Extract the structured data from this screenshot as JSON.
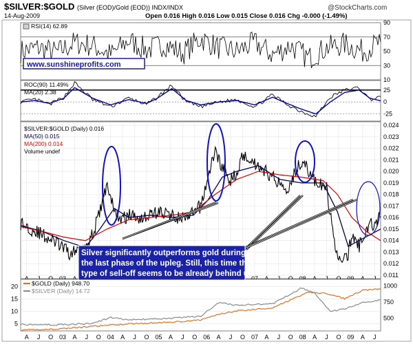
{
  "header": {
    "title": "$SILVER:$GOLD",
    "subtitle": "(Silver (EOD)/Gold (EOD))  INDX/INDX",
    "date": "14-Aug-2009",
    "ohlc": "Open 0.016  High 0.016  Low 0.015  Close 0.016  Chg -0.000 (-1.49%)",
    "brand": "@StockCharts.com"
  },
  "url_label": "www.sunshineprofits.com",
  "annotation": {
    "lines": [
      "Silver significantly outperforms gold during",
      "the last phase of the upleg. Still, this time this",
      "type of sell-off seems to be already behind us."
    ]
  },
  "chart_data": [
    {
      "type": "line",
      "legend": [
        "RSI(14) 62.89"
      ],
      "y_ticks": [
        "90",
        "70",
        "50",
        "30",
        "10"
      ],
      "ylim": [
        10,
        90
      ],
      "reference_lines": [
        70,
        30
      ],
      "series": [
        {
          "name": "RSI(14)",
          "x_frac": [
            0,
            0.05,
            0.1,
            0.15,
            0.2,
            0.25,
            0.3,
            0.35,
            0.4,
            0.45,
            0.5,
            0.55,
            0.6,
            0.65,
            0.7,
            0.75,
            0.8,
            0.85,
            0.9,
            0.95,
            1
          ],
          "values": [
            50,
            55,
            48,
            62,
            58,
            45,
            65,
            52,
            60,
            47,
            68,
            55,
            50,
            62,
            45,
            58,
            40,
            55,
            60,
            50,
            62.89
          ]
        }
      ]
    },
    {
      "type": "line",
      "legend": [
        "ROC(90) 11.49%",
        "MA(20) 2.38"
      ],
      "y_ticks": [
        "25",
        "0",
        "-25"
      ],
      "ylim": [
        -40,
        45
      ],
      "reference_lines": [
        25,
        0,
        -25
      ],
      "series": [
        {
          "name": "ROC(90)",
          "x_frac": [
            0,
            0.04,
            0.08,
            0.12,
            0.15,
            0.2,
            0.25,
            0.3,
            0.35,
            0.38,
            0.42,
            0.46,
            0.5,
            0.55,
            0.6,
            0.65,
            0.7,
            0.74,
            0.78,
            0.82,
            0.86,
            0.9,
            0.94,
            0.97,
            1
          ],
          "values": [
            0,
            5,
            -5,
            10,
            40,
            5,
            -10,
            8,
            -5,
            10,
            35,
            0,
            -10,
            0,
            5,
            -10,
            15,
            -5,
            -20,
            -30,
            10,
            25,
            30,
            5,
            11.49
          ]
        },
        {
          "name": "MA(20)",
          "x_frac": [
            0,
            0.04,
            0.08,
            0.12,
            0.15,
            0.2,
            0.25,
            0.3,
            0.35,
            0.38,
            0.42,
            0.46,
            0.5,
            0.55,
            0.6,
            0.65,
            0.7,
            0.74,
            0.78,
            0.82,
            0.86,
            0.9,
            0.94,
            0.97,
            1
          ],
          "values": [
            0,
            3,
            -3,
            8,
            30,
            8,
            -6,
            5,
            -3,
            8,
            28,
            3,
            -6,
            0,
            3,
            -6,
            10,
            -3,
            -15,
            -25,
            0,
            20,
            25,
            8,
            2.38
          ]
        }
      ]
    },
    {
      "type": "line",
      "title": "$SILVER:$GOLD (Daily) 0.016",
      "legend": [
        "MA(50) 0.015",
        "MA(200) 0.014",
        "Volume undef"
      ],
      "y_ticks": [
        "0.024",
        "0.023",
        "0.022",
        "0.021",
        "0.020",
        "0.019",
        "0.018",
        "0.017",
        "0.016",
        "0.015",
        "0.014",
        "0.013",
        "0.012",
        "0.011"
      ],
      "ylim": [
        0.0107,
        0.0243
      ],
      "x_labels": [
        "A",
        "J",
        "O",
        "03",
        "A",
        "J",
        "O",
        "04",
        "A",
        "J",
        "O",
        "05",
        "A",
        "J",
        "O",
        "06",
        "A",
        "J",
        "O",
        "07",
        "A",
        "J",
        "O",
        "08",
        "A",
        "J",
        "O",
        "09",
        "A",
        "J"
      ],
      "series": [
        {
          "name": "$SILVER:$GOLD",
          "x_frac": [
            0,
            0.03,
            0.06,
            0.1,
            0.14,
            0.18,
            0.2,
            0.22,
            0.24,
            0.26,
            0.28,
            0.3,
            0.34,
            0.38,
            0.42,
            0.46,
            0.5,
            0.54,
            0.58,
            0.6,
            0.62,
            0.64,
            0.66,
            0.7,
            0.74,
            0.78,
            0.82,
            0.85,
            0.87,
            0.89,
            0.91,
            0.92,
            0.94,
            0.96,
            0.98,
            1
          ],
          "values": [
            0.0155,
            0.015,
            0.0145,
            0.0138,
            0.0128,
            0.0137,
            0.0145,
            0.0165,
            0.019,
            0.0165,
            0.0158,
            0.0162,
            0.016,
            0.0165,
            0.0162,
            0.0158,
            0.017,
            0.0218,
            0.019,
            0.02,
            0.0215,
            0.021,
            0.0205,
            0.0195,
            0.0185,
            0.021,
            0.019,
            0.0185,
            0.014,
            0.012,
            0.0128,
            0.0145,
            0.0135,
            0.015,
            0.0155,
            0.016
          ]
        },
        {
          "name": "MA(50)",
          "x_frac": [
            0,
            0.06,
            0.12,
            0.18,
            0.22,
            0.26,
            0.3,
            0.36,
            0.42,
            0.48,
            0.52,
            0.56,
            0.6,
            0.66,
            0.72,
            0.78,
            0.84,
            0.88,
            0.91,
            0.94,
            0.97,
            1
          ],
          "values": [
            0.0153,
            0.0148,
            0.014,
            0.0134,
            0.015,
            0.0168,
            0.016,
            0.0162,
            0.016,
            0.0162,
            0.0175,
            0.0195,
            0.02,
            0.0205,
            0.0193,
            0.019,
            0.019,
            0.0165,
            0.0135,
            0.014,
            0.0145,
            0.015
          ]
        },
        {
          "name": "MA(200)",
          "x_frac": [
            0,
            0.06,
            0.12,
            0.18,
            0.24,
            0.3,
            0.36,
            0.42,
            0.48,
            0.54,
            0.6,
            0.66,
            0.72,
            0.78,
            0.84,
            0.88,
            0.92,
            0.96,
            1
          ],
          "values": [
            0.0152,
            0.0148,
            0.0143,
            0.014,
            0.015,
            0.0158,
            0.016,
            0.0162,
            0.0165,
            0.018,
            0.0193,
            0.02,
            0.0197,
            0.0195,
            0.0192,
            0.018,
            0.016,
            0.0148,
            0.014
          ]
        }
      ]
    },
    {
      "type": "line",
      "legend": [
        "$GOLD (Daily) 948.70",
        "$SILVER (Daily) 14.72"
      ],
      "y_ticks_left": [
        "20",
        "15",
        "10",
        "5"
      ],
      "y_ticks_right": [
        "1000",
        "750",
        "500"
      ],
      "ylim_left": [
        2,
        23
      ],
      "ylim_right": [
        300,
        1100
      ],
      "x_labels": [
        "A",
        "J",
        "O",
        "03",
        "A",
        "J",
        "O",
        "04",
        "A",
        "J",
        "O",
        "05",
        "A",
        "J",
        "O",
        "06",
        "A",
        "J",
        "O",
        "07",
        "A",
        "J",
        "O",
        "08",
        "A",
        "J",
        "O",
        "09",
        "A",
        "J"
      ],
      "series": [
        {
          "name": "$GOLD",
          "axis": "right",
          "x_frac": [
            0,
            0.1,
            0.2,
            0.3,
            0.4,
            0.5,
            0.55,
            0.6,
            0.7,
            0.8,
            0.85,
            0.9,
            0.95,
            1
          ],
          "values": [
            310,
            330,
            370,
            410,
            430,
            470,
            560,
            610,
            660,
            900,
            880,
            800,
            930,
            948.7
          ]
        },
        {
          "name": "$SILVER",
          "axis": "left",
          "x_frac": [
            0,
            0.1,
            0.2,
            0.25,
            0.3,
            0.4,
            0.5,
            0.55,
            0.6,
            0.7,
            0.78,
            0.82,
            0.86,
            0.9,
            0.95,
            1
          ],
          "values": [
            4.6,
            4.5,
            5.0,
            7.5,
            6.5,
            7.0,
            8.0,
            13.5,
            12.5,
            13.0,
            19.5,
            17.0,
            10.0,
            11.0,
            13.5,
            14.72
          ]
        }
      ]
    }
  ],
  "colors": {
    "border": "#a0a0a0",
    "ratio_line": "#000000",
    "ma50": "#00004f",
    "ma200": "#dd0000",
    "gold": "#e07020",
    "silver": "#888888",
    "circles": "#1010cc",
    "annotation_bg": "#1a22a8",
    "url_text": "#1a1aa0"
  }
}
